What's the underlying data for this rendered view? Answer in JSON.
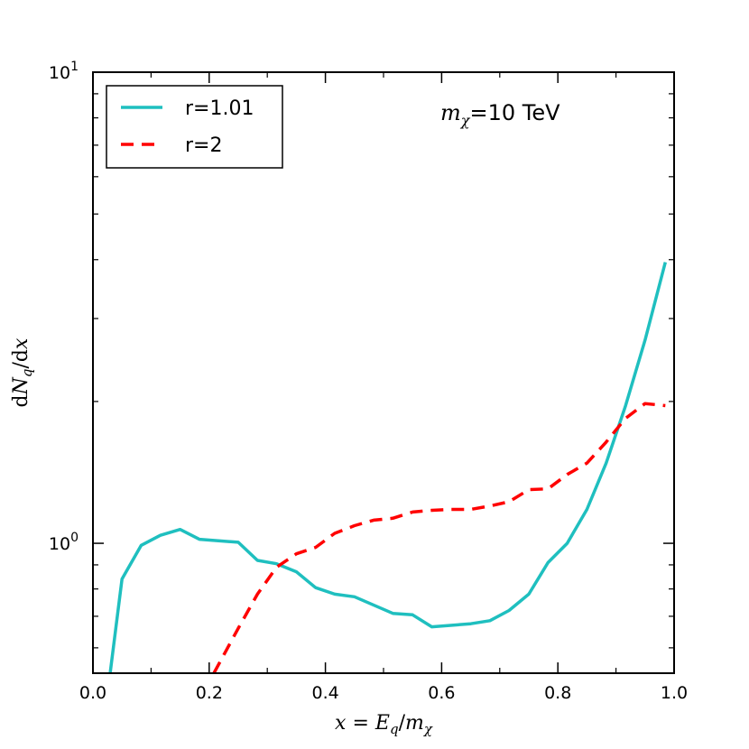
{
  "chart_data": {
    "type": "line",
    "xlabel": "x = E_q/m_χ",
    "ylabel": "dN_q/dx",
    "xscale": "linear",
    "yscale": "log",
    "xlim": [
      0.0,
      1.0
    ],
    "ylim": [
      0.53,
      10
    ],
    "x_ticks": [
      "0.0",
      "0.2",
      "0.4",
      "0.6",
      "0.8",
      "1.0"
    ],
    "y_ticks": [
      {
        "value": 1,
        "base": "10",
        "exp": "0"
      },
      {
        "value": 10,
        "base": "10",
        "exp": "1"
      }
    ],
    "annotation": {
      "symbol": "m",
      "subscript": "χ",
      "text": "=10 TeV"
    },
    "legend": {
      "placement": "upper-left"
    },
    "series": [
      {
        "name": "r=1.01",
        "color": "#1fbfbf",
        "style": "solid",
        "x": [
          0.027,
          0.05,
          0.083,
          0.116,
          0.15,
          0.183,
          0.25,
          0.283,
          0.316,
          0.35,
          0.383,
          0.416,
          0.45,
          0.516,
          0.55,
          0.583,
          0.65,
          0.683,
          0.716,
          0.75,
          0.783,
          0.816,
          0.85,
          0.883,
          0.916,
          0.95,
          0.985
        ],
        "y": [
          0.5,
          0.84,
          0.99,
          1.04,
          1.07,
          1.02,
          1.005,
          0.92,
          0.905,
          0.87,
          0.805,
          0.78,
          0.77,
          0.71,
          0.705,
          0.665,
          0.675,
          0.685,
          0.72,
          0.78,
          0.91,
          1.0,
          1.18,
          1.48,
          1.95,
          2.7,
          3.95
        ]
      },
      {
        "name": "r=2",
        "color": "#ff0000",
        "style": "dashed",
        "x": [
          0.208,
          0.25,
          0.283,
          0.316,
          0.35,
          0.383,
          0.416,
          0.45,
          0.483,
          0.516,
          0.55,
          0.583,
          0.616,
          0.65,
          0.683,
          0.716,
          0.75,
          0.783,
          0.816,
          0.85,
          0.883,
          0.916,
          0.95,
          0.985
        ],
        "y": [
          0.53,
          0.66,
          0.78,
          0.89,
          0.95,
          0.98,
          1.05,
          1.09,
          1.12,
          1.13,
          1.165,
          1.175,
          1.18,
          1.18,
          1.2,
          1.225,
          1.3,
          1.305,
          1.4,
          1.48,
          1.64,
          1.84,
          1.98,
          1.96
        ]
      }
    ]
  }
}
